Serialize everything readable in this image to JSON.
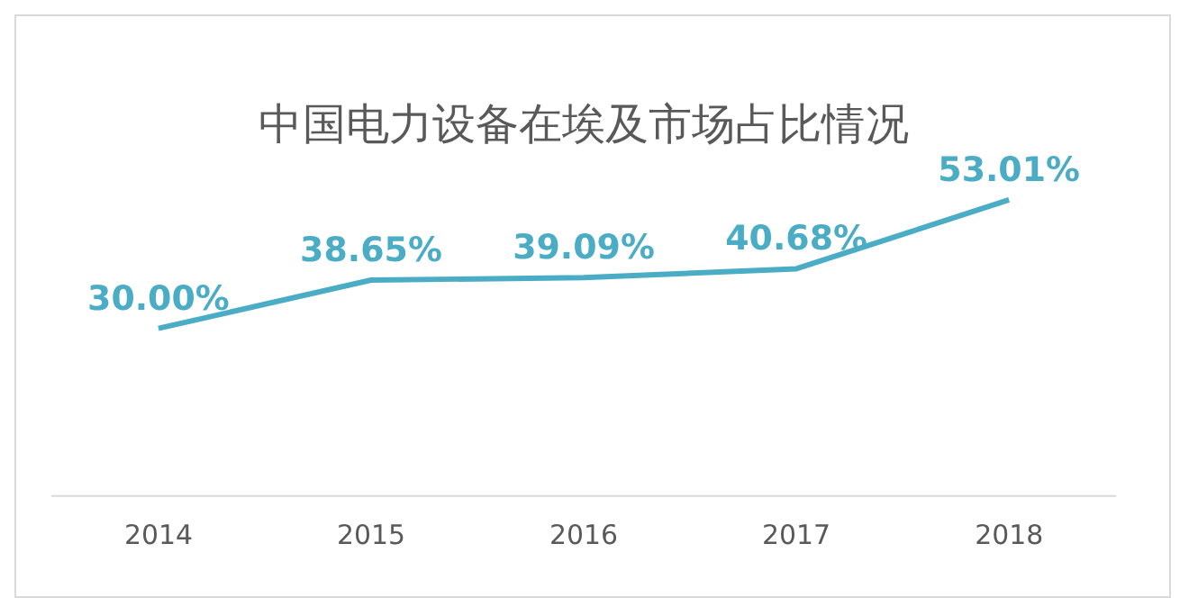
{
  "chart_data": {
    "type": "line",
    "title": "中国电力设备在埃及市场占比情况",
    "categories": [
      "2014",
      "2015",
      "2016",
      "2017",
      "2018"
    ],
    "series": [
      {
        "color": "#4bacc6",
        "values": [
          30.0,
          38.65,
          39.09,
          40.68,
          53.01
        ],
        "value_labels": [
          "30.00%",
          "38.65%",
          "39.09%",
          "40.68%",
          "53.01%"
        ]
      }
    ],
    "legend": false,
    "grid": false,
    "marker": "none",
    "line_style": "solid"
  }
}
